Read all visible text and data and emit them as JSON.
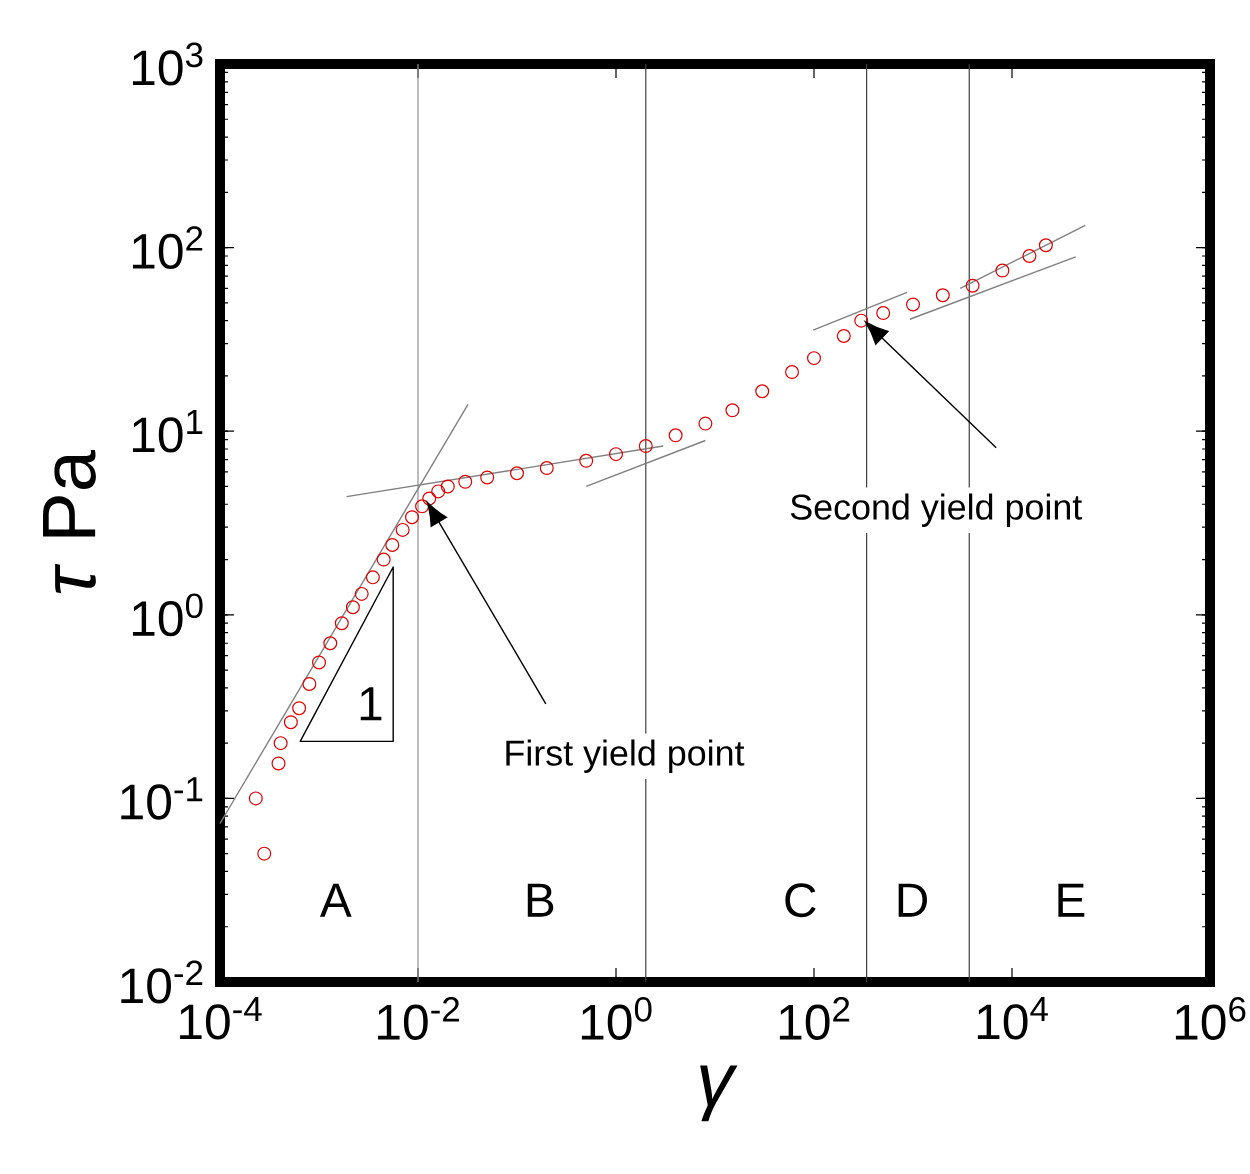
{
  "chart_data": {
    "type": "scatter",
    "log": "xy",
    "marker": "circle",
    "grid": false,
    "xlabel": "γ",
    "ylabel": "*τ* Pa",
    "xlim": [
      0.0001,
      1000000
    ],
    "ylim": [
      0.01,
      1000
    ],
    "xticks": [
      {
        "value": 0.0001,
        "label": "10$^{-4}$"
      },
      {
        "value": 0.01,
        "label": "10$^{-2}$"
      },
      {
        "value": 1,
        "label": "10$^{0}$"
      },
      {
        "value": 100,
        "label": "10$^{2}$"
      },
      {
        "value": 10000,
        "label": "10$^{4}$"
      },
      {
        "value": 1000000,
        "label": "10$^{6}$"
      }
    ],
    "yticks": [
      {
        "value": 0.01,
        "label": "10$^{-2}$"
      },
      {
        "value": 0.1,
        "label": "10$^{-1}$"
      },
      {
        "value": 1,
        "label": "10$^{0}$"
      },
      {
        "value": 10,
        "label": "10$^{1}$"
      },
      {
        "value": 100,
        "label": "10$^{2}$"
      },
      {
        "value": 1000,
        "label": "10$^{3}$"
      }
    ],
    "series": [
      {
        "color": "#e00000",
        "x": [
          0.00023,
          0.00028,
          0.00039,
          0.00041,
          0.00052,
          0.00063,
          0.0008,
          0.001,
          0.0013,
          0.0017,
          0.0022,
          0.0027,
          0.0035,
          0.0045,
          0.0055,
          0.007,
          0.0087,
          0.011,
          0.013,
          0.016,
          0.02,
          0.03,
          0.05,
          0.1,
          0.2,
          0.5,
          1,
          2,
          4,
          8,
          15,
          30,
          60,
          100,
          200,
          300,
          500,
          1000,
          2000,
          4000,
          8000,
          15000,
          22000
        ],
        "values": [
          0.1,
          0.05,
          0.155,
          0.2,
          0.26,
          0.31,
          0.42,
          0.55,
          0.7,
          0.9,
          1.1,
          1.3,
          1.6,
          2.0,
          2.4,
          2.9,
          3.4,
          3.9,
          4.3,
          4.7,
          5.0,
          5.3,
          5.6,
          5.9,
          6.3,
          6.9,
          7.5,
          8.3,
          9.5,
          11,
          13,
          16.5,
          21,
          25,
          33,
          40,
          44,
          49,
          55,
          62,
          75,
          90,
          103
        ]
      },
      {
        "type": "line",
        "marker": "none",
        "color": "#808080",
        "x": [
          0.0001,
          0.032
        ],
        "values": [
          0.073,
          14
        ]
      },
      {
        "type": "line",
        "marker": "none",
        "color": "#808080",
        "x": [
          0.0019,
          3
        ],
        "values": [
          4.4,
          8.3
        ]
      },
      {
        "type": "line",
        "marker": "none",
        "color": "#808080",
        "x": [
          0.5,
          8
        ],
        "values": [
          5.0,
          8.9
        ]
      },
      {
        "type": "line",
        "marker": "none",
        "color": "#808080",
        "x": [
          98,
          870
        ],
        "values": [
          35.5,
          57
        ]
      },
      {
        "type": "line",
        "marker": "none",
        "color": "#808080",
        "x": [
          930,
          44000
        ],
        "values": [
          40.7,
          89
        ]
      },
      {
        "type": "line",
        "marker": "none",
        "color": "#808080",
        "x": [
          3000,
          55000
        ],
        "values": [
          60,
          132
        ]
      }
    ],
    "ref_lines": [
      {
        "axis": "x",
        "value": 0.01,
        "color": "#909090"
      },
      {
        "axis": "x",
        "value": 2,
        "color": "#404040"
      },
      {
        "axis": "x",
        "value": 340,
        "color": "#404040"
      },
      {
        "axis": "x",
        "value": 3700,
        "color": "#404040"
      }
    ],
    "annotations": [
      "First yield point",
      "Second yield point",
      "1",
      "A",
      "B",
      "C",
      "D",
      "E"
    ]
  }
}
